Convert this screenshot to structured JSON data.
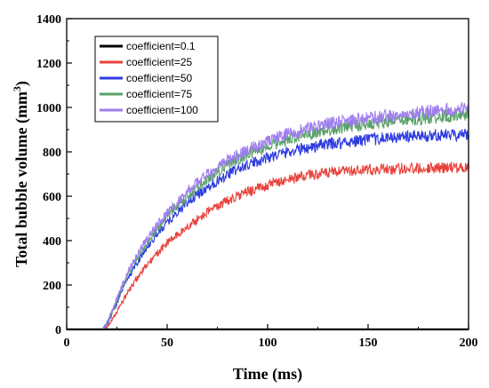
{
  "chart_data": {
    "type": "line",
    "xlabel": "Time (ms)",
    "ylabel_main": "Total bubble volume (mm",
    "ylabel_sup": "3",
    "ylabel_close": ")",
    "xlim": [
      0,
      200
    ],
    "ylim": [
      0,
      1400
    ],
    "xticks": [
      0,
      50,
      100,
      150,
      200
    ],
    "yticks": [
      0,
      200,
      400,
      600,
      800,
      1000,
      1200,
      1400
    ],
    "xtick_labels": [
      "0",
      "50",
      "100",
      "150",
      "200"
    ],
    "ytick_labels": [
      "0",
      "200",
      "400",
      "600",
      "800",
      "1000",
      "1200",
      "1400"
    ],
    "grid": false,
    "legend_position": "top-left",
    "x": [
      0,
      10,
      18,
      20,
      25,
      30,
      35,
      40,
      45,
      50,
      60,
      70,
      80,
      90,
      100,
      110,
      120,
      130,
      140,
      150,
      160,
      170,
      180,
      190,
      200
    ],
    "series": [
      {
        "name": "coefficient=0.1",
        "color": "#000000",
        "values": [
          0,
          0,
          0,
          0,
          0,
          0,
          0,
          0,
          0,
          0,
          0,
          0,
          0,
          0,
          0,
          0,
          0,
          0,
          0,
          0,
          0,
          0,
          0,
          0,
          0
        ]
      },
      {
        "name": "coefficient=25",
        "color": "#e8413b",
        "values": [
          0,
          0,
          0,
          10,
          80,
          160,
          230,
          290,
          340,
          390,
          460,
          530,
          580,
          620,
          650,
          675,
          695,
          705,
          712,
          718,
          722,
          726,
          728,
          730,
          732
        ]
      },
      {
        "name": "coefficient=50",
        "color": "#2d3be0",
        "values": [
          0,
          0,
          0,
          20,
          120,
          220,
          300,
          370,
          430,
          480,
          570,
          640,
          700,
          740,
          775,
          800,
          820,
          835,
          845,
          855,
          862,
          868,
          872,
          876,
          880
        ]
      },
      {
        "name": "coefficient=75",
        "color": "#5aa267",
        "values": [
          0,
          0,
          0,
          25,
          130,
          240,
          320,
          390,
          450,
          510,
          600,
          680,
          740,
          790,
          825,
          855,
          880,
          900,
          915,
          925,
          935,
          945,
          955,
          962,
          970
        ]
      },
      {
        "name": "coefficient=100",
        "color": "#9f7df0",
        "values": [
          0,
          0,
          0,
          28,
          140,
          250,
          335,
          410,
          470,
          525,
          620,
          700,
          760,
          810,
          850,
          880,
          905,
          925,
          940,
          950,
          962,
          970,
          980,
          990,
          1000
        ]
      }
    ]
  }
}
